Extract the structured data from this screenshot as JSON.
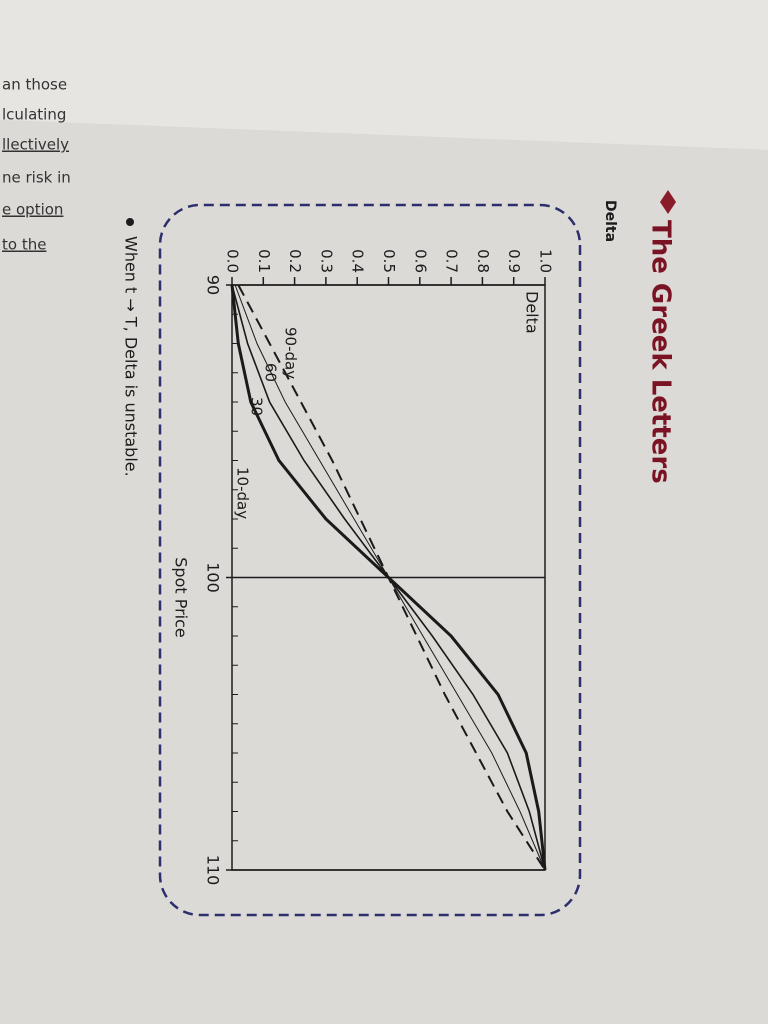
{
  "page": {
    "heading": "The Greek Letters",
    "subheading": "Delta",
    "bullet": "When t → T, Delta is unstable.",
    "margin_text": [
      "an those",
      "lculating",
      "llectively",
      "ne risk in",
      "e option",
      "to the"
    ]
  },
  "chart_data": {
    "type": "line",
    "title": "Delta",
    "xlabel": "Spot Price",
    "x": [
      90,
      92,
      94,
      96,
      98,
      100,
      102,
      104,
      106,
      108,
      110
    ],
    "series": [
      {
        "name": "90-day",
        "color": "#1a1a1a",
        "style": "dashed",
        "linewidth": 2,
        "values": [
          0.02,
          0.12,
          0.22,
          0.32,
          0.41,
          0.5,
          0.59,
          0.68,
          0.78,
          0.88,
          1.0
        ]
      },
      {
        "name": "60",
        "color": "#1a1a1a",
        "style": "solid",
        "linewidth": 1,
        "values": [
          0.01,
          0.08,
          0.17,
          0.28,
          0.39,
          0.5,
          0.61,
          0.72,
          0.83,
          0.92,
          1.0
        ]
      },
      {
        "name": "30",
        "color": "#1a1a1a",
        "style": "solid",
        "linewidth": 1.6,
        "values": [
          0,
          0.05,
          0.12,
          0.23,
          0.36,
          0.5,
          0.64,
          0.77,
          0.88,
          0.95,
          1.0
        ]
      },
      {
        "name": "10-day",
        "color": "#1a1a1a",
        "style": "solid",
        "linewidth": 3,
        "values": [
          0,
          0.02,
          0.06,
          0.15,
          0.3,
          0.5,
          0.7,
          0.85,
          0.94,
          0.98,
          1.0
        ]
      }
    ],
    "xlim": [
      90,
      110
    ],
    "xticks": [
      90,
      100,
      110
    ],
    "x_minor_step": 1,
    "grid": true,
    "ylim": [
      0,
      1
    ],
    "yticks": [
      {
        "value": 0,
        "label": "0.0"
      },
      0.1,
      0.2,
      0.3,
      0.4,
      0.5,
      0.6,
      0.7,
      0.8,
      0.9,
      {
        "value": 1,
        "label": "1.0"
      }
    ]
  }
}
